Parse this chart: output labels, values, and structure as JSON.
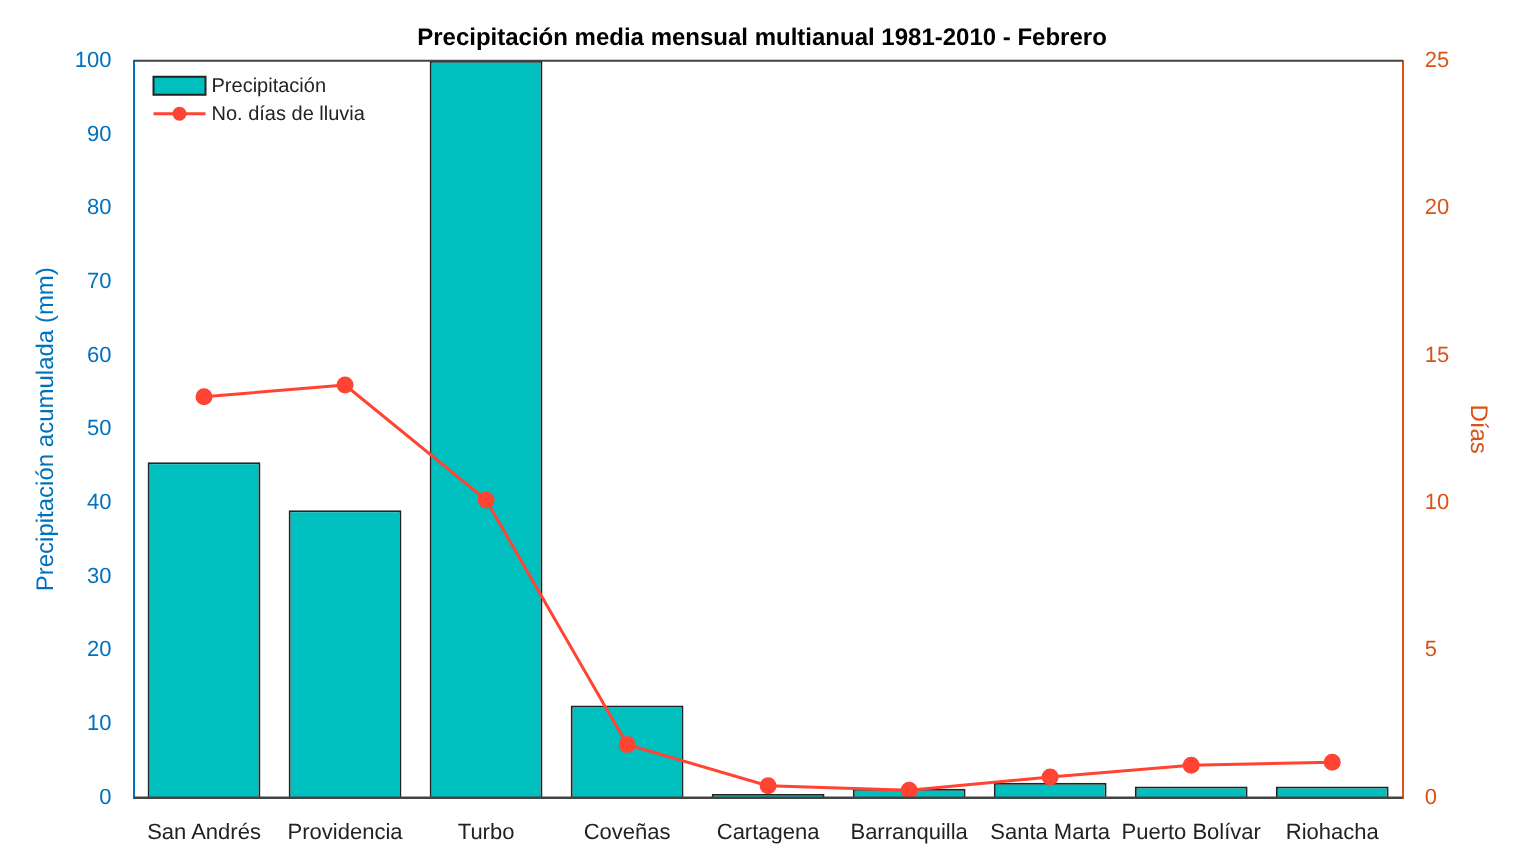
{
  "chart_data": {
    "type": "bar",
    "title": "Precipitación media mensual multianual 1981-2010 - Febrero",
    "ylabel": "Precipitación acumulada (mm)",
    "y2label": "Días",
    "categories": [
      "San Andrés",
      "Providencia",
      "Turbo",
      "Coveñas",
      "Cartagena",
      "Barranquilla",
      "Santa Marta",
      "Puerto Bolívar",
      "Riohacha"
    ],
    "series": [
      {
        "name": "Precipitación",
        "color": "#00bfbf",
        "values": [
          45.5,
          39,
          100,
          12.5,
          0.5,
          1.2,
          2,
          1.5,
          1.5
        ]
      },
      {
        "name": "No. días de lluvia",
        "type": "line",
        "axis": "y2",
        "color": "#ff4433",
        "values": [
          13.6,
          14,
          10.1,
          1.8,
          0.4,
          0.25,
          0.7,
          1.1,
          1.2
        ]
      }
    ],
    "ylim": [
      0,
      100
    ],
    "yticks": [
      0,
      10,
      20,
      30,
      40,
      50,
      60,
      70,
      80,
      90,
      100
    ],
    "y2lim": [
      0,
      25
    ],
    "y2ticks": [
      0,
      5,
      10,
      15,
      20,
      25
    ],
    "grid": false,
    "legend": "top left",
    "marker": "circle",
    "line_style": "solid"
  }
}
